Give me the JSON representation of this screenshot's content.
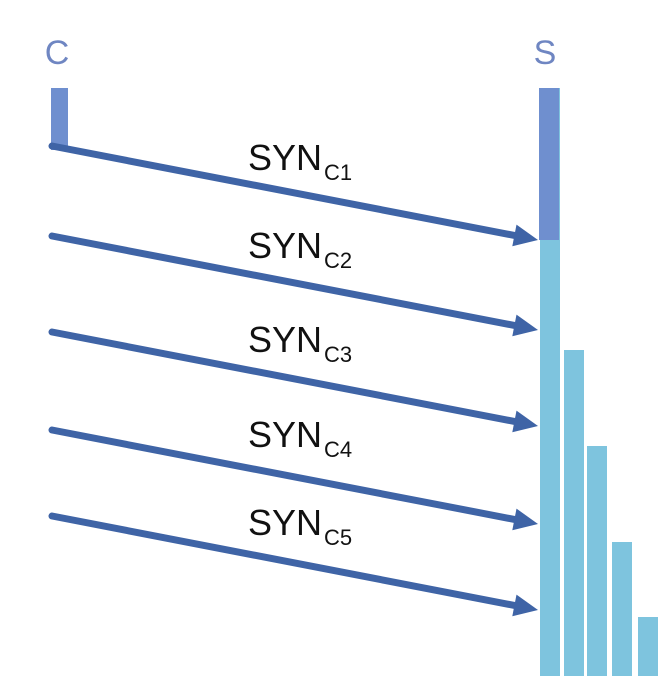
{
  "hosts": {
    "client": "C",
    "server": "S"
  },
  "messages": [
    {
      "base": "SYN",
      "sub": "C1"
    },
    {
      "base": "SYN",
      "sub": "C2"
    },
    {
      "base": "SYN",
      "sub": "C3"
    },
    {
      "base": "SYN",
      "sub": "C4"
    },
    {
      "base": "SYN",
      "sub": "C5"
    }
  ],
  "backlog_queue": {
    "bars": 5,
    "levels": [
      1,
      0.78,
      0.55,
      0.32,
      0.14
    ]
  },
  "colors": {
    "client_bar": "#6f8fcf",
    "server_active": "#6f8fcf",
    "queue": "#7ec4de",
    "arrow": "#3f64a6",
    "host_label": "#6f86c2",
    "text": "#111111"
  }
}
